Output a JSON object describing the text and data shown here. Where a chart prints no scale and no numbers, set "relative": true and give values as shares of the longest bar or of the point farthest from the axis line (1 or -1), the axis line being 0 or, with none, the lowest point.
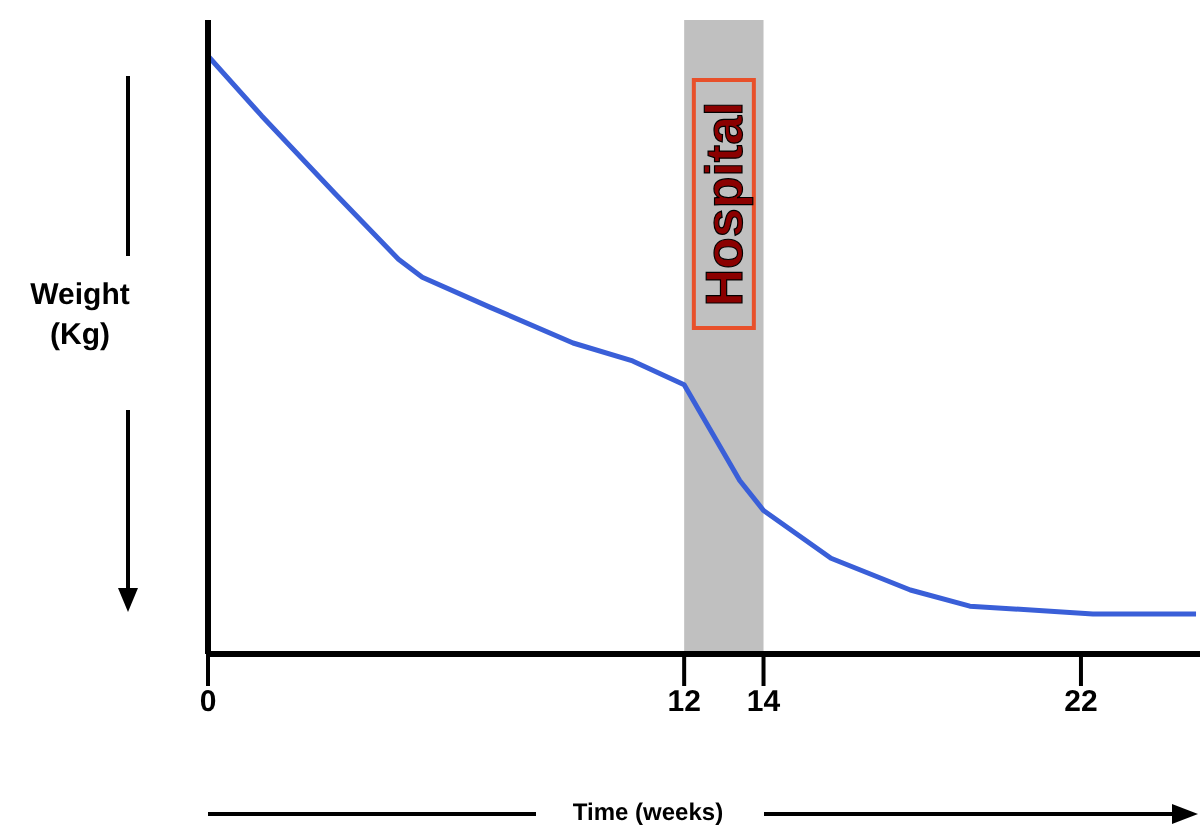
{
  "chart_data": {
    "type": "line",
    "relative": true,
    "xlabel": "Time (weeks)",
    "ylabel": "Weight (Kg)",
    "x": [
      0,
      1.35,
      3.2,
      4.8,
      5.4,
      7.1,
      9.2,
      10.7,
      12,
      13.4,
      14,
      15.7,
      17.7,
      19.2,
      22.3,
      24.9
    ],
    "series": [
      {
        "color": "#3a5fd8",
        "values": [
          1.0,
          0.9,
          0.77,
          0.66,
          0.63,
          0.58,
          0.52,
          0.49,
          0.45,
          0.29,
          0.24,
          0.16,
          0.107,
          0.08,
          0.067,
          0.067
        ]
      }
    ],
    "xlim": [
      0,
      25
    ],
    "xticks": [
      0,
      12,
      14,
      22
    ],
    "bands": [
      {
        "axis": "x",
        "from": 12,
        "to": 14,
        "label": "Hospital",
        "color": "#c0c0c0"
      }
    ]
  }
}
